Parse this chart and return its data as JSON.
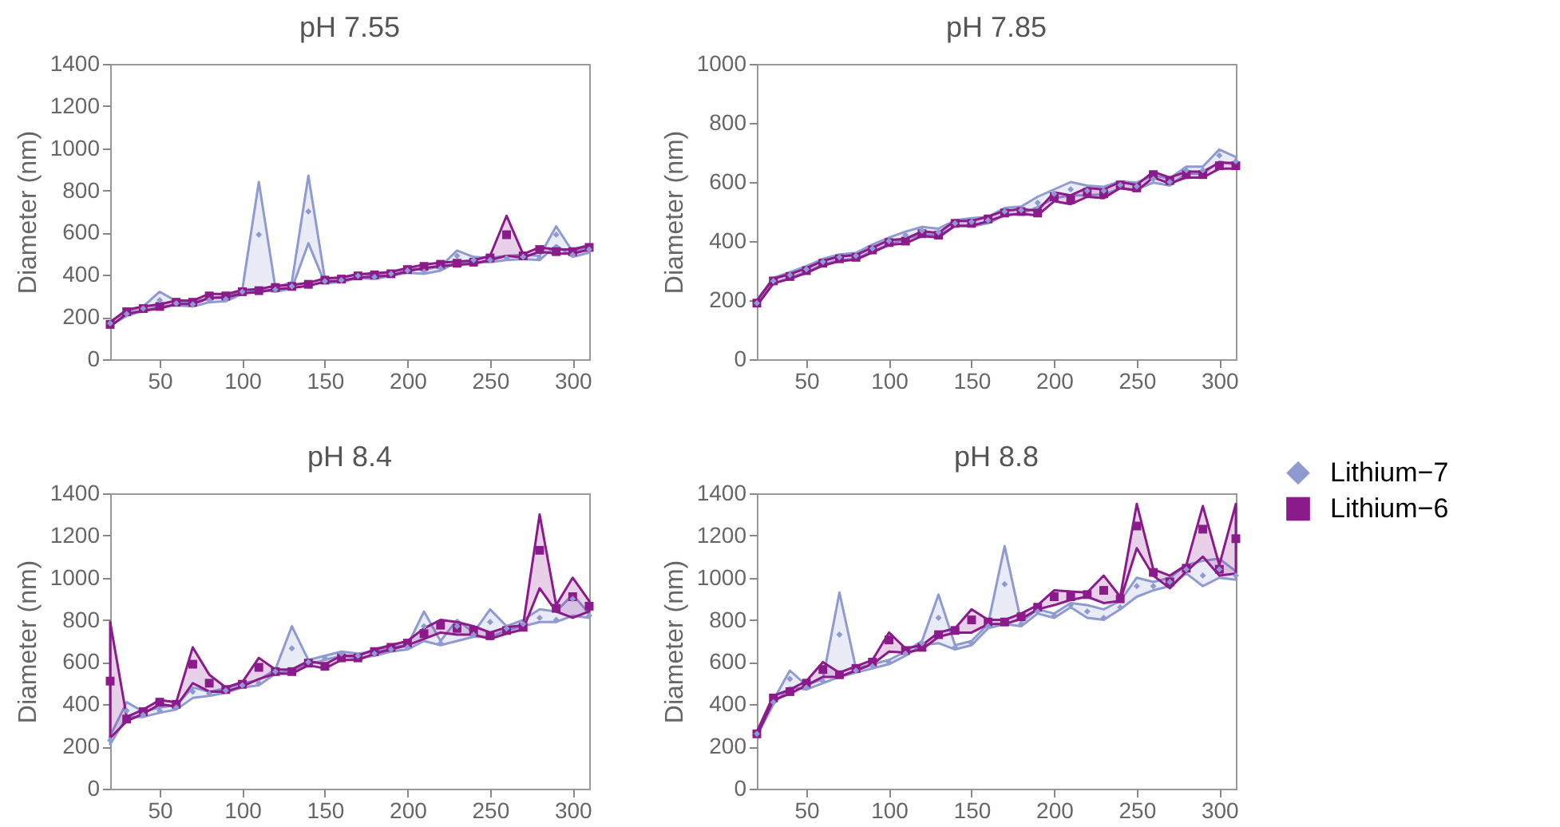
{
  "chart_data": [
    {
      "type": "scatter",
      "title": "pH 7.55",
      "ylabel": "Diameter (nm)",
      "legend": "right",
      "x": [
        20,
        30,
        40,
        50,
        60,
        70,
        80,
        90,
        100,
        110,
        120,
        130,
        140,
        150,
        160,
        170,
        180,
        190,
        200,
        210,
        220,
        230,
        240,
        250,
        260,
        270,
        280,
        290,
        300,
        310
      ],
      "xlim": [
        20,
        310
      ],
      "xticks": [
        50,
        100,
        150,
        200,
        250,
        300
      ],
      "ylim": [
        0,
        1400
      ],
      "yticks": [
        0,
        200,
        400,
        600,
        800,
        1000,
        1200,
        1400
      ],
      "series": [
        {
          "name": "Lithium−7",
          "color": "#8f9bd0",
          "marker": "diamond",
          "values": [
            170,
            215,
            240,
            280,
            265,
            260,
            280,
            285,
            320,
            590,
            330,
            345,
            700,
            370,
            375,
            395,
            390,
            405,
            420,
            415,
            430,
            490,
            470,
            470,
            480,
            485,
            480,
            590,
            495,
            520
          ],
          "lower": [
            160,
            205,
            230,
            250,
            255,
            250,
            270,
            275,
            310,
            330,
            320,
            335,
            550,
            360,
            365,
            385,
            380,
            395,
            410,
            405,
            420,
            460,
            460,
            460,
            470,
            475,
            470,
            540,
            485,
            505
          ],
          "upper": [
            180,
            225,
            250,
            320,
            275,
            270,
            290,
            295,
            330,
            840,
            340,
            365,
            870,
            380,
            385,
            405,
            400,
            415,
            430,
            425,
            440,
            515,
            485,
            480,
            490,
            495,
            490,
            630,
            510,
            535
          ]
        },
        {
          "name": "Lithium−6",
          "color": "#8b1a8b",
          "marker": "square",
          "values": [
            165,
            225,
            240,
            250,
            270,
            270,
            300,
            300,
            320,
            325,
            340,
            345,
            355,
            375,
            380,
            395,
            400,
            405,
            425,
            440,
            450,
            455,
            460,
            480,
            590,
            490,
            520,
            510,
            510,
            530
          ],
          "lower": [
            155,
            215,
            230,
            240,
            262,
            262,
            290,
            292,
            312,
            318,
            332,
            338,
            348,
            367,
            372,
            387,
            392,
            397,
            417,
            432,
            442,
            447,
            452,
            470,
            490,
            482,
            510,
            500,
            500,
            520
          ],
          "upper": [
            175,
            235,
            250,
            260,
            278,
            278,
            310,
            308,
            328,
            332,
            348,
            352,
            362,
            383,
            388,
            403,
            408,
            413,
            433,
            448,
            458,
            463,
            468,
            490,
            680,
            498,
            530,
            520,
            520,
            540
          ]
        }
      ]
    },
    {
      "type": "scatter",
      "title": "pH 7.85",
      "ylabel": "Diameter (nm)",
      "x": [
        20,
        30,
        40,
        50,
        60,
        70,
        80,
        90,
        100,
        110,
        120,
        130,
        140,
        150,
        160,
        170,
        180,
        190,
        200,
        210,
        220,
        230,
        240,
        250,
        260,
        270,
        280,
        290,
        300,
        310
      ],
      "xlim": [
        20,
        310
      ],
      "xticks": [
        50,
        100,
        150,
        200,
        250,
        300
      ],
      "ylim": [
        0,
        1000
      ],
      "yticks": [
        0,
        200,
        400,
        600,
        800,
        1000
      ],
      "series": [
        {
          "name": "Lithium−7",
          "color": "#8f9bd0",
          "marker": "diamond",
          "values": [
            190,
            265,
            285,
            305,
            330,
            345,
            350,
            375,
            400,
            420,
            435,
            430,
            460,
            465,
            470,
            500,
            505,
            530,
            560,
            575,
            570,
            570,
            590,
            585,
            610,
            600,
            640,
            640,
            690,
            670
          ],
          "lower": [
            180,
            255,
            275,
            295,
            320,
            335,
            340,
            365,
            388,
            408,
            422,
            420,
            450,
            450,
            460,
            488,
            493,
            515,
            545,
            555,
            555,
            558,
            578,
            575,
            598,
            588,
            628,
            628,
            670,
            658
          ],
          "upper": [
            200,
            275,
            295,
            315,
            340,
            355,
            360,
            388,
            412,
            432,
            448,
            442,
            470,
            478,
            482,
            512,
            517,
            550,
            575,
            600,
            588,
            584,
            602,
            598,
            622,
            612,
            652,
            652,
            710,
            685
          ]
        },
        {
          "name": "Lithium−6",
          "color": "#8b1a8b",
          "marker": "square",
          "values": [
            190,
            265,
            280,
            300,
            325,
            340,
            345,
            370,
            395,
            400,
            425,
            420,
            460,
            460,
            475,
            495,
            500,
            495,
            550,
            540,
            565,
            560,
            590,
            580,
            625,
            605,
            625,
            625,
            655,
            655
          ],
          "lower": [
            182,
            257,
            272,
            292,
            317,
            332,
            337,
            362,
            387,
            392,
            417,
            412,
            452,
            452,
            467,
            487,
            492,
            487,
            535,
            525,
            550,
            545,
            580,
            570,
            615,
            595,
            615,
            615,
            645,
            645
          ],
          "upper": [
            198,
            273,
            288,
            308,
            333,
            348,
            353,
            378,
            403,
            408,
            433,
            428,
            468,
            468,
            483,
            503,
            508,
            503,
            565,
            555,
            580,
            575,
            600,
            590,
            635,
            615,
            635,
            635,
            665,
            665
          ]
        }
      ]
    },
    {
      "type": "scatter",
      "title": "pH 8.4",
      "ylabel": "Diameter (nm)",
      "x": [
        20,
        30,
        40,
        50,
        60,
        70,
        80,
        90,
        100,
        110,
        120,
        130,
        140,
        150,
        160,
        170,
        180,
        190,
        200,
        210,
        220,
        230,
        240,
        250,
        260,
        270,
        280,
        290,
        300,
        310
      ],
      "xlim": [
        20,
        310
      ],
      "xticks": [
        50,
        100,
        150,
        200,
        250,
        300
      ],
      "ylim": [
        0,
        1400
      ],
      "yticks": [
        0,
        200,
        400,
        600,
        800,
        1000,
        1200,
        1400
      ],
      "series": [
        {
          "name": "Lithium−7",
          "color": "#8f9bd0",
          "marker": "diamond",
          "values": [
            230,
            370,
            350,
            370,
            385,
            460,
            450,
            465,
            490,
            500,
            555,
            665,
            600,
            620,
            640,
            630,
            640,
            660,
            670,
            770,
            690,
            770,
            730,
            790,
            760,
            780,
            810,
            800,
            900,
            820
          ],
          "lower": [
            210,
            340,
            340,
            360,
            375,
            430,
            440,
            455,
            480,
            490,
            545,
            560,
            590,
            610,
            630,
            620,
            630,
            650,
            660,
            700,
            680,
            700,
            720,
            720,
            750,
            770,
            790,
            790,
            820,
            810
          ],
          "upper": [
            250,
            410,
            365,
            385,
            395,
            480,
            460,
            475,
            500,
            515,
            565,
            770,
            610,
            630,
            650,
            640,
            650,
            670,
            680,
            840,
            700,
            800,
            740,
            850,
            770,
            800,
            850,
            840,
            920,
            830
          ]
        },
        {
          "name": "Lithium−6",
          "color": "#8b1a8b",
          "marker": "square",
          "values": [
            510,
            330,
            365,
            410,
            400,
            590,
            500,
            470,
            495,
            575,
            555,
            555,
            595,
            580,
            620,
            620,
            650,
            670,
            690,
            735,
            775,
            760,
            750,
            725,
            750,
            765,
            1130,
            855,
            910,
            865
          ],
          "lower": [
            240,
            320,
            355,
            400,
            390,
            500,
            460,
            460,
            485,
            520,
            545,
            545,
            585,
            570,
            610,
            610,
            640,
            660,
            680,
            710,
            740,
            730,
            730,
            710,
            735,
            755,
            950,
            840,
            810,
            840
          ],
          "upper": [
            790,
            340,
            375,
            420,
            410,
            670,
            540,
            480,
            505,
            620,
            565,
            565,
            605,
            590,
            630,
            630,
            660,
            680,
            700,
            760,
            800,
            790,
            770,
            740,
            765,
            775,
            1300,
            870,
            1000,
            890
          ]
        }
      ]
    },
    {
      "type": "scatter",
      "title": "pH 8.8",
      "ylabel": "Diameter (nm)",
      "x": [
        20,
        30,
        40,
        50,
        60,
        70,
        80,
        90,
        100,
        110,
        120,
        130,
        140,
        150,
        160,
        170,
        180,
        190,
        200,
        210,
        220,
        230,
        240,
        250,
        260,
        270,
        280,
        290,
        300,
        310
      ],
      "xlim": [
        20,
        310
      ],
      "xticks": [
        50,
        100,
        150,
        200,
        250,
        300
      ],
      "ylim": [
        0,
        1400
      ],
      "yticks": [
        0,
        200,
        400,
        600,
        800,
        1000,
        1200,
        1400
      ],
      "series": [
        {
          "name": "Lithium−7",
          "color": "#8f9bd0",
          "marker": "diamond",
          "values": [
            260,
            410,
            520,
            480,
            510,
            730,
            560,
            580,
            600,
            640,
            690,
            810,
            670,
            690,
            770,
            970,
            780,
            840,
            820,
            870,
            840,
            810,
            860,
            960,
            960,
            980,
            1040,
            1010,
            1040,
            1010
          ],
          "lower": [
            250,
            400,
            480,
            470,
            500,
            530,
            550,
            570,
            590,
            630,
            680,
            690,
            660,
            680,
            760,
            780,
            770,
            830,
            810,
            860,
            810,
            800,
            850,
            910,
            940,
            960,
            1020,
            960,
            1000,
            990
          ],
          "upper": [
            270,
            420,
            560,
            490,
            520,
            930,
            570,
            590,
            610,
            650,
            700,
            920,
            680,
            700,
            780,
            1150,
            790,
            850,
            830,
            880,
            870,
            850,
            890,
            1000,
            980,
            1000,
            1060,
            1080,
            1090,
            1030
          ]
        },
        {
          "name": "Lithium−6",
          "color": "#8b1a8b",
          "marker": "square",
          "values": [
            260,
            430,
            460,
            500,
            565,
            540,
            570,
            600,
            705,
            655,
            670,
            730,
            750,
            800,
            790,
            790,
            815,
            860,
            910,
            910,
            920,
            940,
            900,
            1245,
            1025,
            980,
            1045,
            1230,
            1040,
            1185
          ],
          "lower": [
            250,
            420,
            450,
            490,
            530,
            530,
            560,
            590,
            650,
            645,
            660,
            720,
            740,
            740,
            780,
            780,
            805,
            850,
            870,
            895,
            910,
            880,
            890,
            1140,
            1010,
            950,
            1030,
            1100,
            1010,
            1020
          ],
          "upper": [
            270,
            440,
            470,
            510,
            600,
            550,
            580,
            610,
            740,
            665,
            680,
            740,
            760,
            850,
            800,
            800,
            830,
            870,
            940,
            935,
            930,
            1010,
            910,
            1350,
            1040,
            1010,
            1060,
            1340,
            1060,
            1350
          ]
        }
      ]
    }
  ]
}
